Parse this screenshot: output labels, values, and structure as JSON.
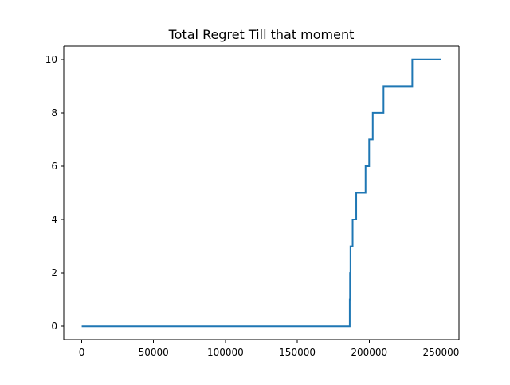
{
  "chart_data": {
    "type": "line",
    "title": "Total Regret Till that moment",
    "xlabel": "",
    "ylabel": "",
    "xlim": [
      -12500,
      262500
    ],
    "ylim": [
      -0.5,
      10.5
    ],
    "x_ticks": [
      0,
      50000,
      100000,
      150000,
      200000,
      250000
    ],
    "x_tick_labels": [
      "0",
      "50000",
      "100000",
      "150000",
      "200000",
      "250000"
    ],
    "y_ticks": [
      0,
      2,
      4,
      6,
      8,
      10
    ],
    "y_tick_labels": [
      "0",
      "2",
      "4",
      "6",
      "8",
      "10"
    ],
    "grid": false,
    "legend": "none",
    "series": [
      {
        "color": "#1f77b4",
        "step": "post",
        "x": [
          0,
          186500,
          186700,
          187000,
          188500,
          191000,
          197500,
          200000,
          202500,
          210000,
          230000,
          250000
        ],
        "values": [
          0,
          1,
          2,
          3,
          4,
          5,
          6,
          7,
          8,
          9,
          10,
          10
        ]
      }
    ]
  }
}
